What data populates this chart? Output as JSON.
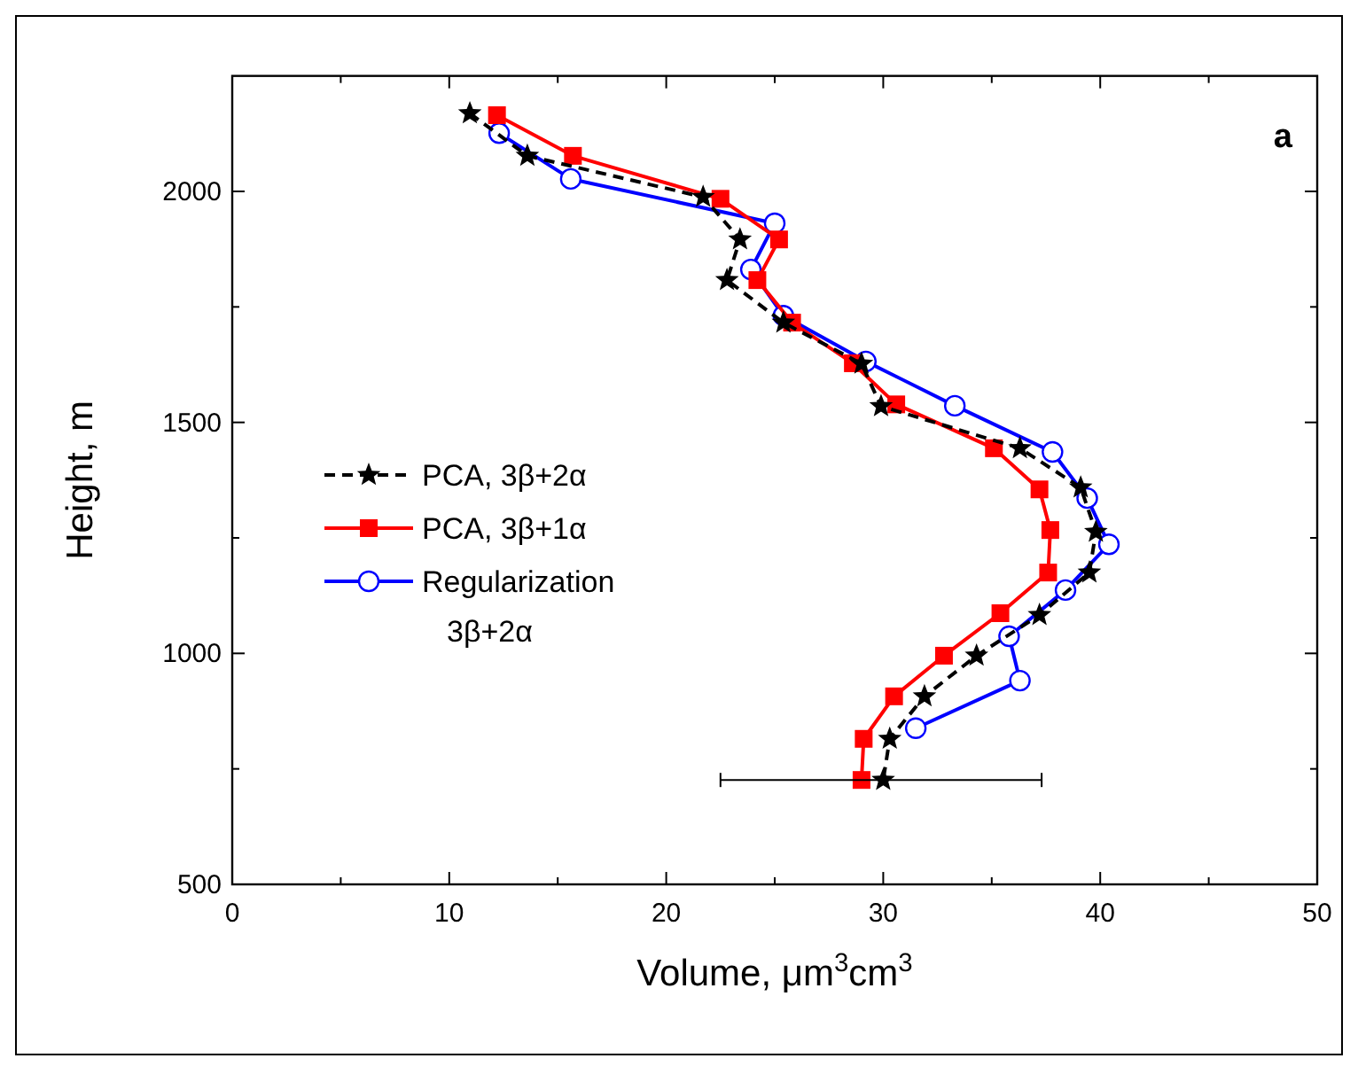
{
  "chart_data": {
    "type": "line",
    "xlabel": "Volume, μm$^{3}$cm$^{3}$",
    "ylabel": "Height, m",
    "annotations": [
      "a"
    ],
    "xlim": [
      0,
      50
    ],
    "ylim": [
      500,
      2250
    ],
    "xticks": [
      0,
      {
        "value": 5,
        "label": null
      },
      10,
      {
        "value": 15,
        "label": null
      },
      20,
      {
        "value": 25,
        "label": null
      },
      30,
      {
        "value": 35,
        "label": null
      },
      40,
      {
        "value": 45,
        "label": null
      },
      50
    ],
    "yticks": [
      500,
      {
        "value": 750,
        "label": null
      },
      1000,
      {
        "value": 1250,
        "label": null
      },
      1500,
      {
        "value": 1750,
        "label": null
      },
      2000
    ],
    "legend": "left",
    "grid": false,
    "series": [
      {
        "name": "PCA, 3β+2α",
        "color": "#000000",
        "marker": "star",
        "line_style": "dashed",
        "x": [
          10.95,
          13.6,
          21.7,
          23.4,
          22.8,
          25.4,
          29.0,
          29.9,
          36.3,
          39.1,
          39.8,
          39.5,
          37.2,
          34.3,
          31.9,
          30.3,
          30.0
        ],
        "values": [
          2169,
          2077,
          1988,
          1896,
          1808,
          1716,
          1627,
          1535,
          1444,
          1359,
          1263,
          1175,
          1083,
          995,
          907,
          815,
          726
        ],
        "xerrors": [
          null,
          null,
          null,
          null,
          null,
          null,
          null,
          null,
          null,
          null,
          null,
          null,
          null,
          null,
          null,
          null,
          [
            22.5,
            37.3
          ]
        ]
      },
      {
        "name": "PCA, 3β+1α",
        "color": "#ff0000",
        "marker": "square",
        "line_style": "solid",
        "x": [
          12.2,
          15.7,
          22.5,
          25.2,
          24.2,
          25.8,
          28.6,
          30.6,
          35.1,
          37.2,
          37.7,
          37.6,
          35.4,
          32.8,
          30.5,
          29.1,
          29.0
        ],
        "values": [
          2165,
          2077,
          1984,
          1896,
          1808,
          1716,
          1628,
          1539,
          1444,
          1355,
          1267,
          1175,
          1087,
          995,
          907,
          815,
          726
        ]
      },
      {
        "name": "Regularization\n3β+2α",
        "color": "#0000ff",
        "marker": "circle",
        "line_style": "solid",
        "x": [
          12.3,
          15.6,
          25.0,
          23.9,
          25.4,
          29.2,
          33.3,
          37.8,
          39.4,
          40.4,
          38.4,
          35.8,
          36.3,
          31.5
        ],
        "values": [
          2126,
          2027,
          1931,
          1831,
          1731,
          1632,
          1536,
          1436,
          1336,
          1236,
          1137,
          1037,
          941,
          838
        ]
      }
    ]
  }
}
